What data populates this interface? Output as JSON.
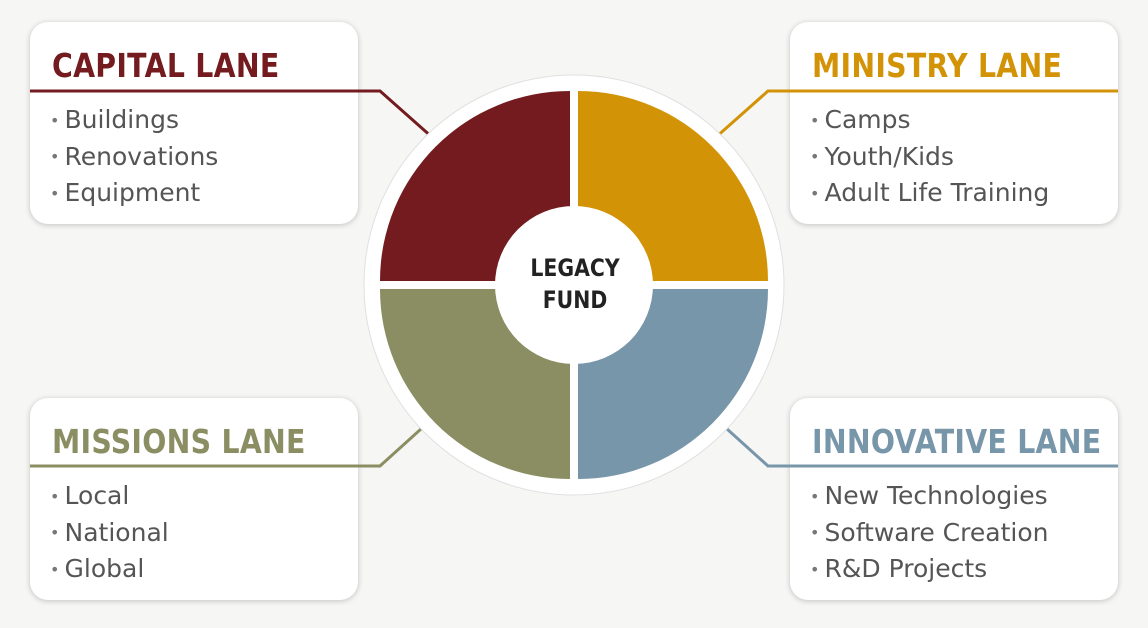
{
  "center": {
    "line1": "LEGACY",
    "line2": "FUND"
  },
  "lanes": {
    "capital": {
      "title": "CAPITAL LANE",
      "color": "#731b1f",
      "items": [
        "Buildings",
        "Renovations",
        "Equipment"
      ]
    },
    "ministry": {
      "title": "MINISTRY LANE",
      "color": "#d39307",
      "items": [
        "Camps",
        "Youth/Kids",
        "Adult Life Training"
      ]
    },
    "missions": {
      "title": "MISSIONS LANE",
      "color": "#8a8e62",
      "items": [
        "Local",
        "National",
        "Global"
      ]
    },
    "innovative": {
      "title": "INNOVATIVE LANE",
      "color": "#7896a9",
      "items": [
        "New Technologies",
        "Software Creation",
        "R&D Projects"
      ]
    }
  }
}
